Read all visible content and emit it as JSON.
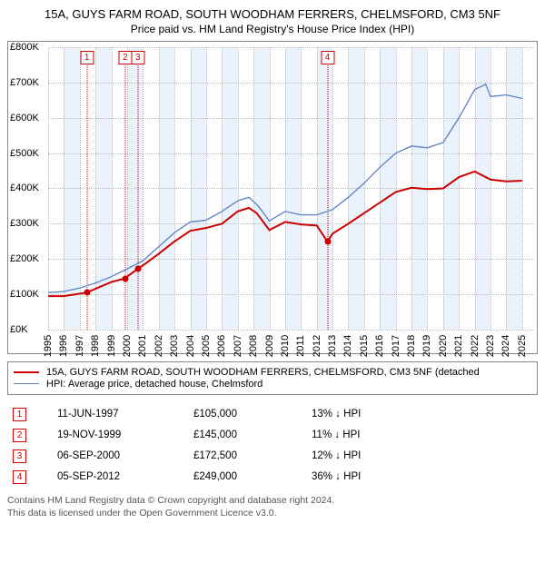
{
  "title_line1": "15A, GUYS FARM ROAD, SOUTH WOODHAM FERRERS, CHELMSFORD, CM3 5NF",
  "title_line2": "Price paid vs. HM Land Registry's House Price Index (HPI)",
  "chart": {
    "type": "line",
    "x_years": [
      1995,
      1996,
      1997,
      1998,
      1999,
      2000,
      2001,
      2002,
      2003,
      2004,
      2005,
      2006,
      2007,
      2008,
      2009,
      2010,
      2011,
      2012,
      2013,
      2014,
      2015,
      2016,
      2017,
      2018,
      2019,
      2020,
      2021,
      2022,
      2023,
      2024,
      2025
    ],
    "xlim": [
      1995,
      2025.7
    ],
    "ylim": [
      0,
      800
    ],
    "ytick_step": 100,
    "ytick_prefix": "£",
    "ytick_suffix": "K",
    "background": "#ffffff",
    "grid_color": "#bbbbbb",
    "band_color": "#eaf3fb",
    "band_years": [
      1996,
      1998,
      2000,
      2002,
      2004,
      2006,
      2008,
      2010,
      2012,
      2014,
      2016,
      2018,
      2020,
      2022,
      2024
    ],
    "series": {
      "property": {
        "color": "#cc0000",
        "width": 2,
        "points": [
          [
            1995,
            95
          ],
          [
            1996,
            95
          ],
          [
            1997,
            102
          ],
          [
            1997.45,
            105
          ],
          [
            1998,
            116
          ],
          [
            1999,
            135
          ],
          [
            1999.88,
            145
          ],
          [
            2000,
            150
          ],
          [
            2000.68,
            172.5
          ],
          [
            2001,
            182
          ],
          [
            2002,
            215
          ],
          [
            2003,
            250
          ],
          [
            2004,
            280
          ],
          [
            2005,
            288
          ],
          [
            2006,
            300
          ],
          [
            2007,
            335
          ],
          [
            2007.7,
            345
          ],
          [
            2008.2,
            330
          ],
          [
            2009,
            282
          ],
          [
            2010,
            305
          ],
          [
            2011,
            298
          ],
          [
            2012,
            295
          ],
          [
            2012.68,
            249
          ],
          [
            2013,
            272
          ],
          [
            2014,
            300
          ],
          [
            2015,
            330
          ],
          [
            2016,
            360
          ],
          [
            2017,
            390
          ],
          [
            2018,
            402
          ],
          [
            2019,
            398
          ],
          [
            2020,
            400
          ],
          [
            2021,
            432
          ],
          [
            2022,
            448
          ],
          [
            2023,
            425
          ],
          [
            2024,
            420
          ],
          [
            2025,
            422
          ]
        ]
      },
      "hpi": {
        "color": "#5b7fc7",
        "width": 1.3,
        "points": [
          [
            1995,
            105
          ],
          [
            1996,
            108
          ],
          [
            1997,
            118
          ],
          [
            1998,
            132
          ],
          [
            1999,
            150
          ],
          [
            2000,
            172
          ],
          [
            2001,
            195
          ],
          [
            2002,
            235
          ],
          [
            2003,
            275
          ],
          [
            2004,
            305
          ],
          [
            2005,
            310
          ],
          [
            2006,
            335
          ],
          [
            2007,
            365
          ],
          [
            2007.7,
            375
          ],
          [
            2008.3,
            350
          ],
          [
            2009,
            308
          ],
          [
            2010,
            335
          ],
          [
            2011,
            325
          ],
          [
            2012,
            325
          ],
          [
            2013,
            340
          ],
          [
            2014,
            375
          ],
          [
            2015,
            415
          ],
          [
            2016,
            460
          ],
          [
            2017,
            500
          ],
          [
            2018,
            520
          ],
          [
            2019,
            515
          ],
          [
            2020,
            530
          ],
          [
            2021,
            600
          ],
          [
            2022,
            680
          ],
          [
            2022.7,
            695
          ],
          [
            2023,
            660
          ],
          [
            2024,
            665
          ],
          [
            2025,
            655
          ]
        ]
      }
    },
    "markers": [
      {
        "n": "1",
        "year": 1997.45,
        "price": 105
      },
      {
        "n": "2",
        "year": 1999.88,
        "price": 145
      },
      {
        "n": "3",
        "year": 2000.68,
        "price": 172.5
      },
      {
        "n": "4",
        "year": 2012.68,
        "price": 249
      }
    ]
  },
  "legend": {
    "items": [
      {
        "color": "#cc0000",
        "width": 2,
        "label": "15A, GUYS FARM ROAD, SOUTH WOODHAM FERRERS, CHELMSFORD, CM3 5NF (detached"
      },
      {
        "color": "#5b7fc7",
        "width": 1.3,
        "label": "HPI: Average price, detached house, Chelmsford"
      }
    ]
  },
  "transactions": [
    {
      "n": "1",
      "date": "11-JUN-1997",
      "price": "£105,000",
      "delta": "13%",
      "dir": "↓",
      "vs": "HPI"
    },
    {
      "n": "2",
      "date": "19-NOV-1999",
      "price": "£145,000",
      "delta": "11%",
      "dir": "↓",
      "vs": "HPI"
    },
    {
      "n": "3",
      "date": "06-SEP-2000",
      "price": "£172,500",
      "delta": "12%",
      "dir": "↓",
      "vs": "HPI"
    },
    {
      "n": "4",
      "date": "05-SEP-2012",
      "price": "£249,000",
      "delta": "36%",
      "dir": "↓",
      "vs": "HPI"
    }
  ],
  "footer": {
    "line1": "Contains HM Land Registry data © Crown copyright and database right 2024.",
    "line2": "This data is licensed under the Open Government Licence v3.0."
  }
}
